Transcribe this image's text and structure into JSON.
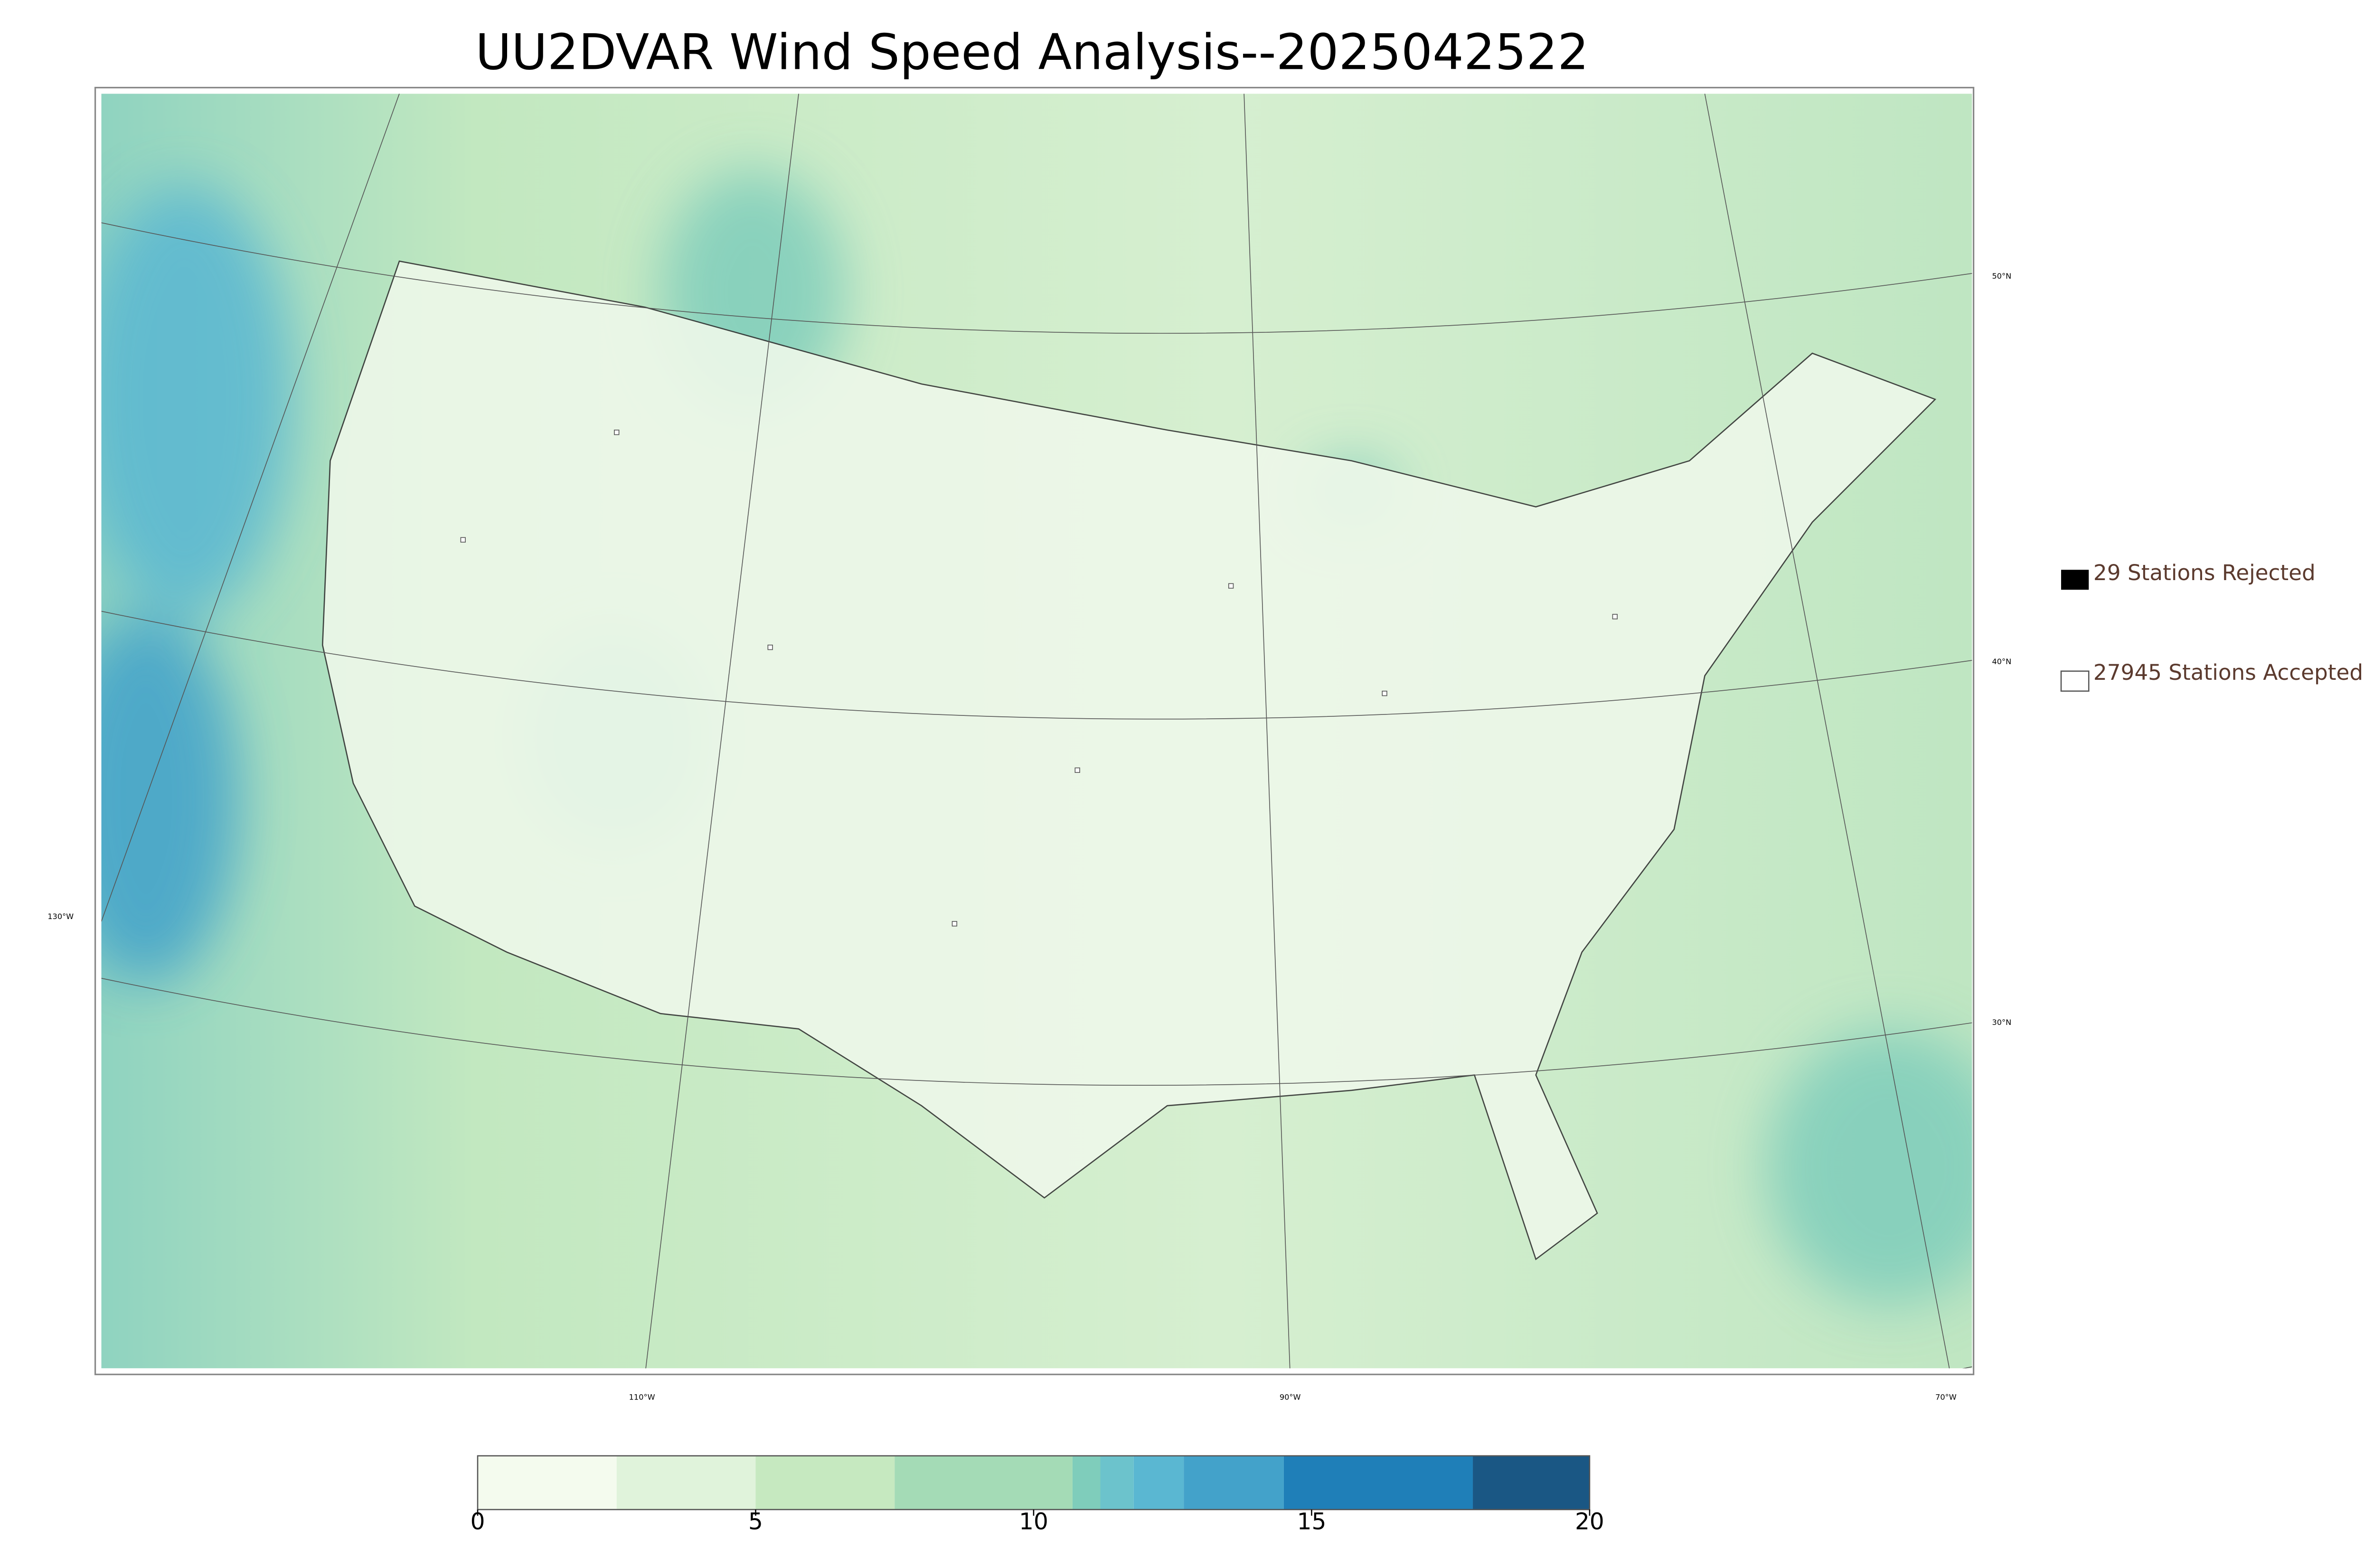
{
  "title": "UU2DVAR Wind Speed Analysis--2025042522",
  "legend": {
    "rejected": "29 Stations Rejected",
    "accepted": "27945 Stations Accepted"
  },
  "lat_labels": [
    "50°N",
    "40°N",
    "30°N"
  ],
  "lon_labels": [
    "130°W",
    "110°W",
    "90°W",
    "70°W"
  ],
  "colorbar": {
    "lim": [
      0,
      20
    ],
    "ticks": [
      0,
      5,
      10,
      15,
      20
    ],
    "bounds": [
      0,
      2.5,
      5,
      7.5,
      10.7,
      11.2,
      11.8,
      12.7,
      14.5,
      17.9,
      20
    ],
    "colors": [
      "#f4fbee",
      "#e0f3db",
      "#c6e9c0",
      "#a4dbb6",
      "#7fcdbb",
      "#6cc3cc",
      "#5ab7d2",
      "#43a2ca",
      "#1f7fb8",
      "#1a5784"
    ]
  }
}
